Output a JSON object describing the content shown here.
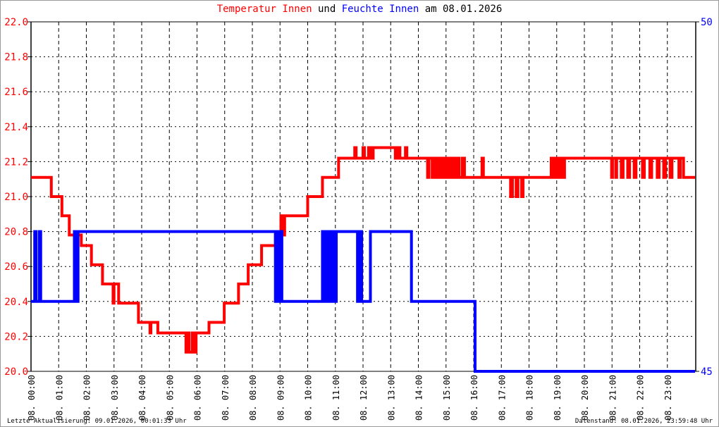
{
  "chart_data": {
    "type": "line",
    "title": {
      "part1": "Temperatur Innen",
      "part2": " und ",
      "part3": "Feuchte Innen",
      "part4": " am 08.01.2026"
    },
    "title_colors": {
      "part1": "#ff0000",
      "part2": "#000000",
      "part3": "#0000ff",
      "part4": "#000000"
    },
    "step": true,
    "grid": true,
    "x_ticks": [
      "08. 00:00",
      "08. 01:00",
      "08. 02:00",
      "08. 03:00",
      "08. 04:00",
      "08. 05:00",
      "08. 06:00",
      "08. 07:00",
      "08. 08:00",
      "08. 09:00",
      "08. 10:00",
      "08. 11:00",
      "08. 12:00",
      "08. 13:00",
      "08. 14:00",
      "08. 15:00",
      "08. 16:00",
      "08. 17:00",
      "08. 18:00",
      "08. 19:00",
      "08. 20:00",
      "08. 21:00",
      "08. 22:00",
      "08. 23:00"
    ],
    "xlim": [
      "00:00",
      "24:00"
    ],
    "y_left": {
      "ylim": [
        20.0,
        22.0
      ],
      "ticks": [
        "20.0",
        "20.2",
        "20.4",
        "20.6",
        "20.8",
        "21.0",
        "21.2",
        "21.4",
        "21.6",
        "21.8",
        "22.0"
      ],
      "color": "#ff0000"
    },
    "y_right": {
      "ylim": [
        45,
        50
      ],
      "ticks": [
        "45",
        "50"
      ],
      "color": "#0000ff"
    },
    "series": [
      {
        "axis": "left",
        "color": "#ff0000",
        "points": [
          [
            "00:00",
            21.11
          ],
          [
            "00:44",
            21.0
          ],
          [
            "01:07",
            20.89
          ],
          [
            "01:23",
            20.78
          ],
          [
            "01:49",
            20.72
          ],
          [
            "02:11",
            20.61
          ],
          [
            "02:35",
            20.5
          ],
          [
            "02:58",
            20.39
          ],
          [
            "03:00",
            20.5
          ],
          [
            "03:10",
            20.39
          ],
          [
            "03:53",
            20.28
          ],
          [
            "04:18",
            20.22
          ],
          [
            "04:20",
            20.28
          ],
          [
            "04:35",
            20.22
          ],
          [
            "05:36",
            20.11
          ],
          [
            "05:40",
            20.22
          ],
          [
            "05:43",
            20.11
          ],
          [
            "05:50",
            20.22
          ],
          [
            "05:53",
            20.11
          ],
          [
            "05:58",
            20.22
          ],
          [
            "06:26",
            20.28
          ],
          [
            "06:59",
            20.39
          ],
          [
            "07:30",
            20.5
          ],
          [
            "07:51",
            20.61
          ],
          [
            "08:20",
            20.72
          ],
          [
            "08:50",
            20.78
          ],
          [
            "09:02",
            20.89
          ],
          [
            "09:06",
            20.78
          ],
          [
            "09:10",
            20.89
          ],
          [
            "09:22",
            20.89
          ],
          [
            "10:00",
            21.0
          ],
          [
            "10:32",
            21.11
          ],
          [
            "11:07",
            21.22
          ],
          [
            "11:42",
            21.28
          ],
          [
            "11:45",
            21.22
          ],
          [
            "12:00",
            21.28
          ],
          [
            "12:03",
            21.22
          ],
          [
            "12:12",
            21.28
          ],
          [
            "12:18",
            21.22
          ],
          [
            "12:22",
            21.28
          ],
          [
            "13:10",
            21.22
          ],
          [
            "13:14",
            21.28
          ],
          [
            "13:20",
            21.22
          ],
          [
            "13:32",
            21.28
          ],
          [
            "13:35",
            21.22
          ],
          [
            "14:20",
            21.11
          ],
          [
            "14:23",
            21.22
          ],
          [
            "14:30",
            21.11
          ],
          [
            "14:36",
            21.22
          ],
          [
            "14:40",
            21.11
          ],
          [
            "14:46",
            21.22
          ],
          [
            "14:52",
            21.11
          ],
          [
            "14:58",
            21.22
          ],
          [
            "15:04",
            21.11
          ],
          [
            "15:10",
            21.22
          ],
          [
            "15:16",
            21.11
          ],
          [
            "15:22",
            21.22
          ],
          [
            "15:28",
            21.11
          ],
          [
            "15:35",
            21.22
          ],
          [
            "15:40",
            21.11
          ],
          [
            "16:18",
            21.22
          ],
          [
            "16:21",
            21.11
          ],
          [
            "17:20",
            21.0
          ],
          [
            "17:24",
            21.11
          ],
          [
            "17:32",
            21.0
          ],
          [
            "17:36",
            21.11
          ],
          [
            "17:44",
            21.0
          ],
          [
            "17:47",
            21.11
          ],
          [
            "18:48",
            21.22
          ],
          [
            "18:52",
            21.11
          ],
          [
            "18:58",
            21.22
          ],
          [
            "19:02",
            21.11
          ],
          [
            "19:08",
            21.22
          ],
          [
            "19:12",
            21.11
          ],
          [
            "19:17",
            21.22
          ],
          [
            "20:59",
            21.11
          ],
          [
            "21:01",
            21.22
          ],
          [
            "21:08",
            21.11
          ],
          [
            "21:10",
            21.22
          ],
          [
            "21:20",
            21.11
          ],
          [
            "21:24",
            21.22
          ],
          [
            "21:34",
            21.11
          ],
          [
            "21:38",
            21.22
          ],
          [
            "21:48",
            21.11
          ],
          [
            "21:52",
            21.22
          ],
          [
            "22:06",
            21.11
          ],
          [
            "22:10",
            21.22
          ],
          [
            "22:22",
            21.11
          ],
          [
            "22:26",
            21.22
          ],
          [
            "22:38",
            21.11
          ],
          [
            "22:42",
            21.22
          ],
          [
            "22:52",
            21.11
          ],
          [
            "22:56",
            21.22
          ],
          [
            "23:06",
            21.11
          ],
          [
            "23:10",
            21.22
          ],
          [
            "23:25",
            21.11
          ],
          [
            "23:28",
            21.22
          ],
          [
            "23:35",
            21.11
          ],
          [
            "23:59",
            21.11
          ]
        ]
      },
      {
        "axis": "right",
        "color": "#0000ff",
        "points": [
          [
            "00:00",
            46
          ],
          [
            "00:08",
            47
          ],
          [
            "00:11",
            46
          ],
          [
            "00:18",
            47
          ],
          [
            "00:21",
            46
          ],
          [
            "01:34",
            47
          ],
          [
            "01:36",
            46
          ],
          [
            "01:38",
            47
          ],
          [
            "01:40",
            46
          ],
          [
            "01:42",
            47
          ],
          [
            "08:50",
            46
          ],
          [
            "08:52",
            47
          ],
          [
            "08:54",
            46
          ],
          [
            "08:56",
            47
          ],
          [
            "08:58",
            46
          ],
          [
            "09:02",
            47
          ],
          [
            "09:04",
            46
          ],
          [
            "10:32",
            47
          ],
          [
            "10:34",
            46
          ],
          [
            "10:38",
            47
          ],
          [
            "10:40",
            46
          ],
          [
            "10:44",
            47
          ],
          [
            "10:48",
            46
          ],
          [
            "10:50",
            47
          ],
          [
            "10:54",
            46
          ],
          [
            "10:56",
            47
          ],
          [
            "10:59",
            46
          ],
          [
            "11:02",
            47
          ],
          [
            "11:48",
            46
          ],
          [
            "11:50",
            47
          ],
          [
            "11:52",
            46
          ],
          [
            "11:54",
            47
          ],
          [
            "11:57",
            46
          ],
          [
            "12:16",
            47
          ],
          [
            "13:45",
            46
          ],
          [
            "16:03",
            45
          ],
          [
            "23:59",
            45
          ]
        ]
      }
    ]
  },
  "footer": {
    "left": "Letzte Aktualisierung: 09.01.2026, 00:01:33 Uhr",
    "right": "Datenstand: 08.01.2026, 23:59:48 Uhr"
  }
}
